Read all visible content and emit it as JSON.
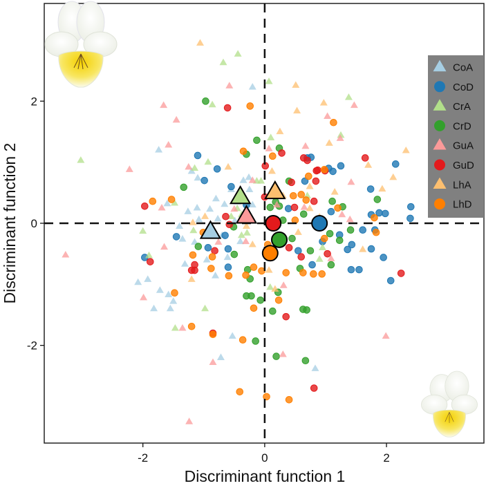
{
  "chart_data": {
    "type": "scatter",
    "title": "",
    "xlabel": "Discriminant function 1",
    "ylabel": "Discriminant function 2",
    "xlim": [
      -3.62,
      3.6
    ],
    "ylim": [
      -3.6,
      3.6
    ],
    "xticks": [
      -2,
      0,
      2
    ],
    "yticks": [
      -2,
      0,
      2
    ],
    "xtick_labels": [
      "-2",
      "0",
      "2"
    ],
    "ytick_labels": [
      "-2",
      "0",
      "2"
    ],
    "grid": false,
    "reference_lines": {
      "x": 0,
      "y": 0,
      "style": "dashed"
    },
    "legend": {
      "placement": "top-right",
      "background": "#808080",
      "entries": [
        {
          "name": "CoA",
          "marker": "triangle",
          "color": "#a6cee3"
        },
        {
          "name": "CoD",
          "marker": "circle",
          "color": "#1f78b4"
        },
        {
          "name": "CrA",
          "marker": "triangle",
          "color": "#b2df8a"
        },
        {
          "name": "CrD",
          "marker": "circle",
          "color": "#33a02c"
        },
        {
          "name": "GuA",
          "marker": "triangle",
          "color": "#fb9a99"
        },
        {
          "name": "GuD",
          "marker": "circle",
          "color": "#e31a1c"
        },
        {
          "name": "LhA",
          "marker": "triangle",
          "color": "#fdbf6f"
        },
        {
          "name": "LhD",
          "marker": "circle",
          "color": "#ff7f00"
        }
      ]
    },
    "centroids": [
      {
        "group": "CoA",
        "x": -0.89,
        "y": -0.14
      },
      {
        "group": "CrA",
        "x": -0.4,
        "y": 0.43
      },
      {
        "group": "GuA",
        "x": -0.3,
        "y": 0.11
      },
      {
        "group": "LhA",
        "x": 0.17,
        "y": 0.51
      },
      {
        "group": "GuD",
        "x": 0.14,
        "y": 0.0
      },
      {
        "group": "CoD",
        "x": 0.9,
        "y": 0.0
      },
      {
        "group": "CrD",
        "x": 0.24,
        "y": -0.27
      },
      {
        "group": "LhD",
        "x": 0.09,
        "y": -0.49
      }
    ],
    "series": [
      {
        "name": "CoA",
        "points": [
          [
            -0.2,
            2.23
          ],
          [
            -1.74,
            1.2
          ],
          [
            -1.2,
            0.85
          ],
          [
            -1.1,
            0.74
          ],
          [
            -1.6,
            0.32
          ],
          [
            -1.26,
            0.19
          ],
          [
            -1.11,
            0.25
          ],
          [
            -0.9,
            0.23
          ],
          [
            -0.66,
            0.31
          ],
          [
            -1.08,
            0.06
          ],
          [
            -0.77,
            0.07
          ],
          [
            -0.49,
            0.04
          ],
          [
            -0.35,
            0.09
          ],
          [
            -0.61,
            -0.56
          ],
          [
            -0.81,
            -0.86
          ],
          [
            -1.31,
            -0.67
          ],
          [
            -1.35,
            -0.26
          ],
          [
            -1.15,
            -0.31
          ],
          [
            -2.08,
            -0.97
          ],
          [
            -1.92,
            -0.92
          ],
          [
            -1.72,
            -1.1
          ],
          [
            -1.58,
            -1.17
          ],
          [
            -1.5,
            -1.28
          ],
          [
            -1.82,
            -1.4
          ],
          [
            -1.55,
            -1.4
          ],
          [
            -0.53,
            -1.85
          ],
          [
            -0.72,
            -2.2
          ],
          [
            0.83,
            -2.38
          ],
          [
            -0.26,
            0.75
          ],
          [
            -0.35,
            0.7
          ],
          [
            -0.55,
            0.55
          ],
          [
            -0.8,
            0.4
          ],
          [
            -0.45,
            0.35
          ],
          [
            -0.2,
            0.3
          ],
          [
            -1.4,
            -0.05
          ],
          [
            -0.7,
            -0.2
          ],
          [
            -0.4,
            -0.3
          ],
          [
            -0.95,
            -0.6
          ],
          [
            -0.25,
            0.55
          ]
        ]
      },
      {
        "name": "CoD",
        "points": [
          [
            -1.1,
            1.11
          ],
          [
            -0.78,
            0.89
          ],
          [
            -0.99,
            0.7
          ],
          [
            -0.55,
            0.6
          ],
          [
            -1.45,
            -0.22
          ],
          [
            -0.93,
            -0.4
          ],
          [
            -0.6,
            -0.42
          ],
          [
            -0.6,
            -0.72
          ],
          [
            -0.65,
            -0.2
          ],
          [
            -1.97,
            -0.56
          ],
          [
            0.66,
            0.69
          ],
          [
            0.7,
            1.07
          ],
          [
            0.76,
            1.08
          ],
          [
            1.25,
            0.94
          ],
          [
            2.15,
            0.97
          ],
          [
            1.05,
            0.9
          ],
          [
            1.12,
            0.85
          ],
          [
            1.74,
            0.56
          ],
          [
            1.09,
            0.19
          ],
          [
            1.75,
            0.14
          ],
          [
            1.88,
            0.17
          ],
          [
            1.98,
            0.16
          ],
          [
            2.4,
            0.27
          ],
          [
            2.39,
            0.08
          ],
          [
            0.39,
            0.24
          ],
          [
            1.23,
            -0.19
          ],
          [
            1.61,
            -0.11
          ],
          [
            1.81,
            -0.11
          ],
          [
            1.43,
            -0.35
          ],
          [
            1.36,
            -0.43
          ],
          [
            1.75,
            -0.42
          ],
          [
            1.95,
            -0.56
          ],
          [
            0.78,
            -0.68
          ],
          [
            1.42,
            -0.76
          ],
          [
            1.55,
            -0.76
          ],
          [
            2.07,
            -0.94
          ],
          [
            0.55,
            -0.45
          ],
          [
            0.95,
            -0.3
          ],
          [
            -0.3,
            0.3
          ]
        ]
      },
      {
        "name": "CrA",
        "points": [
          [
            -0.44,
            2.77
          ],
          [
            -0.68,
            2.63
          ],
          [
            -0.86,
            1.94
          ],
          [
            0.07,
            2.32
          ],
          [
            1.38,
            2.06
          ],
          [
            0.1,
            1.4
          ],
          [
            1.25,
            1.44
          ],
          [
            -1.15,
            0.9
          ],
          [
            -0.93,
            1.0
          ],
          [
            -1.48,
            0.33
          ],
          [
            -0.13,
            0.69
          ],
          [
            -0.06,
            0.69
          ],
          [
            -0.55,
            0.11
          ],
          [
            -0.45,
            0.24
          ],
          [
            -0.38,
            0.14
          ],
          [
            -2.0,
            -0.13
          ],
          [
            -1.9,
            -0.53
          ],
          [
            -1.17,
            -0.12
          ],
          [
            -0.98,
            -1.4
          ],
          [
            -1.47,
            -1.72
          ],
          [
            0.9,
            -0.59
          ],
          [
            0.09,
            -1.05
          ],
          [
            -3.02,
            1.03
          ],
          [
            -0.38,
            -0.2
          ],
          [
            -0.29,
            -0.16
          ],
          [
            0.95,
            -0.4
          ],
          [
            0.7,
            0.45
          ]
        ]
      },
      {
        "name": "CrD",
        "points": [
          [
            -0.97,
            2.0
          ],
          [
            -0.13,
            1.36
          ],
          [
            -0.3,
            1.13
          ],
          [
            0.24,
            1.23
          ],
          [
            -1.33,
            0.59
          ],
          [
            0.4,
            0.69
          ],
          [
            1.85,
            0.39
          ],
          [
            1.11,
            0.36
          ],
          [
            1.28,
            0.27
          ],
          [
            0.18,
            0.35
          ],
          [
            0.24,
            0.28
          ],
          [
            0.09,
            0.26
          ],
          [
            0.64,
            0.15
          ],
          [
            -1.09,
            -0.38
          ],
          [
            -0.51,
            -0.06
          ],
          [
            -0.5,
            -0.51
          ],
          [
            -0.28,
            -0.76
          ],
          [
            -0.24,
            -0.91
          ],
          [
            0.58,
            -0.74
          ],
          [
            0.22,
            -1.13
          ],
          [
            -0.3,
            -1.19
          ],
          [
            -0.22,
            -1.19
          ],
          [
            -0.07,
            -1.26
          ],
          [
            0.13,
            -1.44
          ],
          [
            0.63,
            -1.41
          ],
          [
            0.69,
            -1.42
          ],
          [
            -0.15,
            -1.93
          ],
          [
            0.19,
            -2.18
          ],
          [
            0.67,
            -2.25
          ],
          [
            1.07,
            -0.17
          ],
          [
            1.23,
            -0.28
          ],
          [
            1.41,
            -0.11
          ],
          [
            1.09,
            -0.68
          ],
          [
            0.45,
            -0.25
          ],
          [
            0.75,
            -0.45
          ],
          [
            0.3,
            0.05
          ]
        ]
      },
      {
        "name": "GuA",
        "points": [
          [
            -0.58,
            2.25
          ],
          [
            -1.66,
            1.93
          ],
          [
            -1.45,
            1.69
          ],
          [
            -1.58,
            1.28
          ],
          [
            -2.22,
            0.88
          ],
          [
            1.47,
            1.93
          ],
          [
            1.03,
            1.75
          ],
          [
            1.24,
            1.39
          ],
          [
            0.07,
            1.22
          ],
          [
            0.67,
            1.26
          ],
          [
            -1.25,
            0.92
          ],
          [
            -1.69,
            0.25
          ],
          [
            1.42,
            0.67
          ],
          [
            1.27,
            0.14
          ],
          [
            1.4,
            0.06
          ],
          [
            0.65,
            0.26
          ],
          [
            -0.5,
            0.23
          ],
          [
            -0.76,
            -0.31
          ],
          [
            -3.27,
            -0.52
          ],
          [
            -1.65,
            -0.39
          ],
          [
            -1.99,
            -1.22
          ],
          [
            -1.35,
            -1.72
          ],
          [
            0.31,
            -1.02
          ],
          [
            -0.85,
            -2.28
          ],
          [
            0.3,
            -2.15
          ],
          [
            1.99,
            -1.85
          ],
          [
            -1.24,
            -3.25
          ],
          [
            1.09,
            -0.58
          ],
          [
            -0.31,
            -0.3
          ],
          [
            -0.2,
            0.7
          ],
          [
            0.2,
            0.3
          ]
        ]
      },
      {
        "name": "GuD",
        "points": [
          [
            -0.61,
            1.89
          ],
          [
            0.28,
            1.15
          ],
          [
            0.64,
            1.07
          ],
          [
            0.7,
            1.03
          ],
          [
            1.65,
            1.07
          ],
          [
            0.99,
            0.86
          ],
          [
            0.87,
            0.87
          ],
          [
            0.84,
            0.69
          ],
          [
            0.44,
            0.67
          ],
          [
            0.85,
            0.86
          ],
          [
            0.81,
            0.36
          ],
          [
            0.49,
            0.26
          ],
          [
            0.0,
            0.43
          ],
          [
            0.01,
            0.94
          ],
          [
            -1.97,
            0.28
          ],
          [
            -0.64,
            0.11
          ],
          [
            -0.58,
            -0.02
          ],
          [
            -0.82,
            -0.45
          ],
          [
            -1.88,
            -0.63
          ],
          [
            -1.15,
            -0.68
          ],
          [
            -1.2,
            -0.77
          ],
          [
            -1.15,
            -0.77
          ],
          [
            0.35,
            -1.53
          ],
          [
            0.81,
            -2.7
          ],
          [
            -0.85,
            -1.8
          ],
          [
            1.03,
            -0.5
          ],
          [
            2.24,
            -0.82
          ],
          [
            0.4,
            -0.4
          ],
          [
            0.6,
            -0.55
          ]
        ]
      },
      {
        "name": "LhA",
        "points": [
          [
            -1.06,
            2.95
          ],
          [
            0.51,
            2.26
          ],
          [
            0.97,
            1.97
          ],
          [
            0.53,
            1.84
          ],
          [
            0.25,
            1.5
          ],
          [
            1.06,
            1.31
          ],
          [
            2.32,
            1.19
          ],
          [
            1.7,
            0.95
          ],
          [
            2.11,
            0.75
          ],
          [
            1.93,
            0.56
          ],
          [
            1.15,
            0.51
          ],
          [
            0.74,
            0.6
          ],
          [
            0.74,
            0.24
          ],
          [
            -0.6,
            0.92
          ],
          [
            -0.98,
            0.11
          ],
          [
            -1.18,
            0.01
          ],
          [
            -1.2,
            -0.92
          ],
          [
            0.07,
            -0.77
          ],
          [
            0.17,
            -1.08
          ],
          [
            1.61,
            -0.43
          ],
          [
            -0.3,
            -0.05
          ],
          [
            0.3,
            0.45
          ],
          [
            0.9,
            0.1
          ],
          [
            -0.2,
            -0.35
          ],
          [
            0.55,
            -0.15
          ],
          [
            0.12,
            0.85
          ]
        ]
      },
      {
        "name": "LhD",
        "points": [
          [
            -0.24,
            1.92
          ],
          [
            1.13,
            1.65
          ],
          [
            0.13,
            1.1
          ],
          [
            -0.35,
            1.18
          ],
          [
            0.98,
            0.88
          ],
          [
            0.72,
            0.77
          ],
          [
            0.47,
            0.45
          ],
          [
            0.6,
            0.47
          ],
          [
            0.68,
            0.38
          ],
          [
            1.2,
            0.25
          ],
          [
            1.8,
            0.09
          ],
          [
            -1.84,
            0.36
          ],
          [
            -1.53,
            0.39
          ],
          [
            -1.01,
            -0.15
          ],
          [
            -1.18,
            -0.52
          ],
          [
            -0.86,
            -0.55
          ],
          [
            -0.88,
            -0.74
          ],
          [
            -0.59,
            -0.86
          ],
          [
            -0.31,
            -0.85
          ],
          [
            -0.18,
            -0.72
          ],
          [
            -0.05,
            -0.78
          ],
          [
            0.35,
            -0.81
          ],
          [
            0.63,
            -0.81
          ],
          [
            0.8,
            -0.83
          ],
          [
            0.94,
            -0.83
          ],
          [
            0.23,
            -1.26
          ],
          [
            -0.18,
            -1.39
          ],
          [
            -1.48,
            -1.14
          ],
          [
            -1.2,
            -1.69
          ],
          [
            -0.85,
            -1.82
          ],
          [
            -0.36,
            -1.91
          ],
          [
            -0.41,
            -2.76
          ],
          [
            0.03,
            -2.84
          ],
          [
            0.4,
            -2.89
          ],
          [
            0.98,
            -0.25
          ],
          [
            1.83,
            -0.15
          ],
          [
            0.05,
            -0.35
          ],
          [
            0.5,
            0.05
          ]
        ]
      }
    ],
    "images": [
      {
        "name": "flower-top-left",
        "description": "white and yellow pansy flower (larger)"
      },
      {
        "name": "flower-bottom-right",
        "description": "white and yellow pansy flower (smaller)"
      }
    ]
  }
}
